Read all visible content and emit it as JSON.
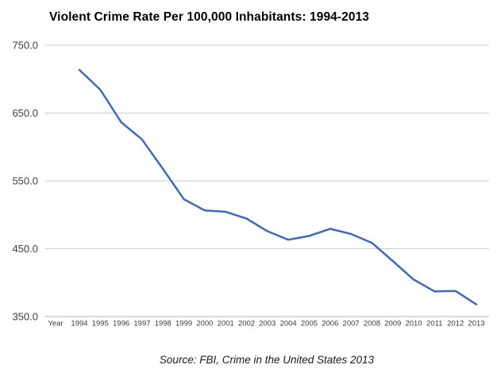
{
  "header": {
    "title": "Violent Crime Rate Per 100,000 Inhabitants: 1994-2013"
  },
  "footer": {
    "source": "Source: FBI, Crime in the United States 2013"
  },
  "chart_data": {
    "type": "line",
    "title": "Violent Crime Rate Per 100,000 Inhabitants: 1994-2013",
    "x_axis_label": "Year",
    "categories": [
      "1994",
      "1995",
      "1996",
      "1997",
      "1998",
      "1999",
      "2000",
      "2001",
      "2002",
      "2003",
      "2004",
      "2005",
      "2006",
      "2007",
      "2008",
      "2009",
      "2010",
      "2011",
      "2012",
      "2013"
    ],
    "values": [
      713.6,
      684.5,
      636.6,
      611.0,
      567.6,
      523.0,
      506.5,
      504.5,
      494.4,
      475.8,
      463.2,
      469.0,
      479.3,
      471.8,
      458.6,
      431.9,
      404.5,
      387.1,
      387.8,
      367.9
    ],
    "ylim": [
      350,
      750
    ],
    "yticks": [
      750,
      650,
      550,
      450,
      350
    ],
    "ytick_labels": [
      "750.0",
      "650.0",
      "550.0",
      "450.0",
      "350.0"
    ],
    "xlabel": "Year",
    "ylabel": "",
    "grid": "horizontal",
    "legend": "none",
    "colors": {
      "line": "#3C69C8",
      "gridline": "#CCCCCC",
      "axis_line": "#B7B7B7",
      "ytick_text": "#404040",
      "xtick_text": "#3A3A3A"
    }
  }
}
